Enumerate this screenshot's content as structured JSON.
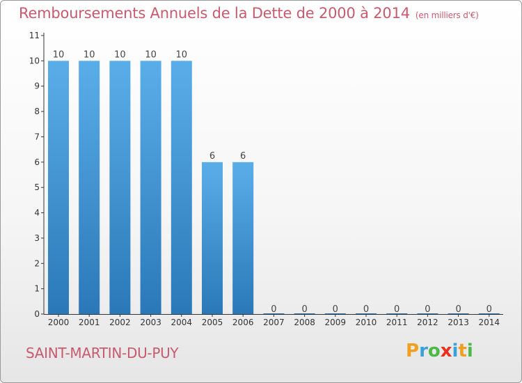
{
  "chart_data": {
    "type": "bar",
    "title": "Remboursements Annuels de la Dette de 2000 à 2014",
    "subtitle": "(en milliers d'€)",
    "xlabel": "",
    "ylabel": "",
    "categories": [
      "2000",
      "2001",
      "2002",
      "2003",
      "2004",
      "2005",
      "2006",
      "2007",
      "2008",
      "2009",
      "2010",
      "2011",
      "2012",
      "2013",
      "2014"
    ],
    "values": [
      10,
      10,
      10,
      10,
      10,
      6,
      6,
      0,
      0,
      0,
      0,
      0,
      0,
      0,
      0
    ],
    "data_labels": [
      "10",
      "10",
      "10",
      "10",
      "10",
      "6",
      "6",
      "0",
      "0",
      "0",
      "0",
      "0",
      "0",
      "0",
      "0"
    ],
    "ylim": [
      0,
      11
    ],
    "yticks": [
      "0",
      "1",
      "2",
      "3",
      "4",
      "5",
      "6",
      "7",
      "8",
      "9",
      "10",
      "11"
    ],
    "grid": false,
    "legend": "none",
    "bar_color_top": "#5aaee8",
    "bar_color_bottom": "#2a78b8"
  },
  "footer": {
    "commune": "SAINT-MARTIN-DU-PUY",
    "brand_letters": [
      "P",
      "r",
      "o",
      "x",
      "i",
      "t",
      "i"
    ],
    "brand_colors": [
      "#f0a020",
      "#3aa0d8",
      "#4cb848",
      "#e83020",
      "#3aa0d8",
      "#f0a020",
      "#4cb848"
    ]
  },
  "colors": {
    "title": "#c85a6e",
    "axis": "#333333"
  }
}
